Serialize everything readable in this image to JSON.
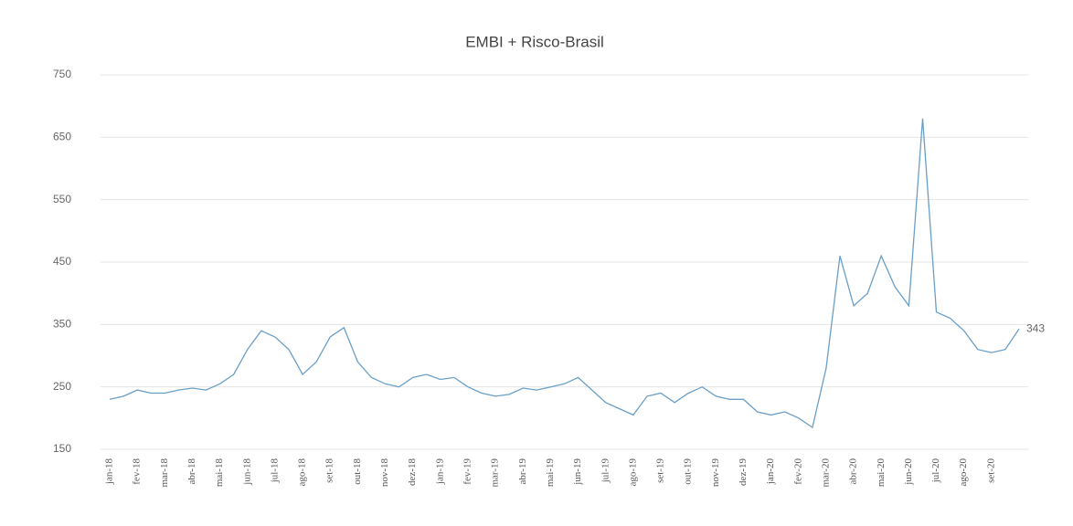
{
  "chart_data": {
    "type": "line",
    "title": "EMBI + Risco-Brasil",
    "categories": [
      "jan-18",
      null,
      "fev-18",
      null,
      "mar-18",
      null,
      "abr-18",
      null,
      "mai-18",
      null,
      "jun-18",
      null,
      "jul-18",
      null,
      "ago-18",
      null,
      "set-18",
      null,
      "out-18",
      null,
      "nov-18",
      null,
      "dez-18",
      null,
      "jan-19",
      null,
      "fev-19",
      null,
      "mar-19",
      null,
      "abr-19",
      null,
      "mai-19",
      null,
      "jun-19",
      null,
      "jul-19",
      null,
      "ago-19",
      null,
      "set-19",
      null,
      "out-19",
      null,
      "nov-19",
      null,
      "dez-19",
      null,
      "jan-20",
      null,
      "fev-20",
      null,
      "mar-20",
      null,
      "abr-20",
      null,
      "mai-20",
      null,
      "jun-20",
      null,
      "jul-20",
      null,
      "ago-20",
      null,
      "set-20",
      null,
      null
    ],
    "series": [
      {
        "color": "#6a9fc8",
        "values": [
          230,
          235,
          245,
          240,
          240,
          245,
          248,
          245,
          255,
          270,
          310,
          340,
          330,
          310,
          270,
          290,
          330,
          345,
          290,
          265,
          255,
          250,
          265,
          270,
          262,
          265,
          250,
          240,
          235,
          238,
          248,
          245,
          250,
          255,
          265,
          245,
          225,
          215,
          205,
          235,
          240,
          225,
          240,
          250,
          235,
          230,
          230,
          210,
          205,
          210,
          200,
          185,
          280,
          460,
          380,
          400,
          460,
          410,
          380,
          680,
          370,
          360,
          340,
          310,
          305,
          310,
          343
        ]
      }
    ],
    "ylim": [
      150,
      750
    ],
    "yticks": [
      150,
      250,
      350,
      450,
      550,
      650,
      750
    ],
    "grid": true
  }
}
